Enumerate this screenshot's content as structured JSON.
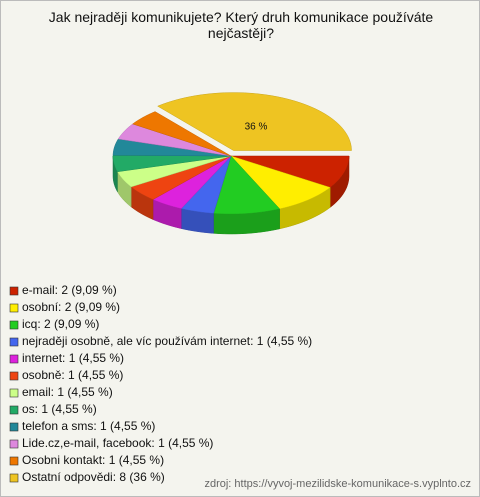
{
  "chart_data": {
    "type": "pie",
    "title": "Jak nejraději komunikujete? Který druh komunikace používáte nejčastěji?",
    "categories": [
      "e-mail: 2 (9,09 %)",
      "osobní: 2 (9,09 %)",
      "icq: 2 (9,09 %)",
      "nejraději osobně, ale víc používám internet: 1 (4,55 %)",
      "internet: 1 (4,55 %)",
      "osobně: 1 (4,55 %)",
      "email: 1 (4,55 %)",
      "os: 1 (4,55 %)",
      "telefon a sms: 1 (4,55 %)",
      "Lide.cz,e-mail, facebook: 1 (4,55 %)",
      "Osobni kontakt: 1 (4,55 %)",
      "Ostatní odpovědi: 8 (36 %)"
    ],
    "values": [
      9.09,
      9.09,
      9.09,
      4.55,
      4.55,
      4.55,
      4.55,
      4.55,
      4.55,
      4.55,
      4.55,
      36
    ],
    "value_labels": [
      null,
      null,
      null,
      null,
      null,
      null,
      null,
      null,
      null,
      null,
      null,
      "36 %"
    ],
    "colors": [
      "#cc2200",
      "#ffee00",
      "#22cc22",
      "#4466ee",
      "#dd22dd",
      "#ee4411",
      "#ccff88",
      "#22aa66",
      "#228899",
      "#dd88dd",
      "#ee7700",
      "#eec422"
    ],
    "source": "zdroj: https://vyvoj-mezilidske-komunikace-s.vyplnto.cz"
  }
}
